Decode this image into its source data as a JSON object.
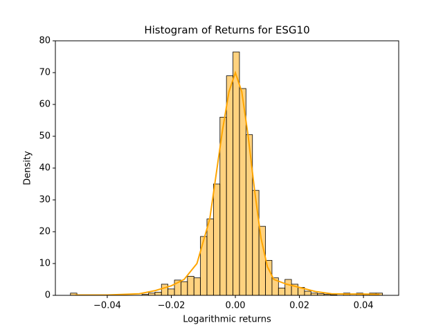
{
  "chart_data": {
    "type": "histogram",
    "title": "Histogram of Returns for ESG10",
    "x_label": "Logarithmic returns",
    "y_label": "Density",
    "bins": [
      -0.0515,
      -0.04947,
      -0.04744,
      -0.04541,
      -0.04338,
      -0.04135,
      -0.03932,
      -0.03729,
      -0.03526,
      -0.03323,
      -0.0312,
      -0.02917,
      -0.02714,
      -0.02511,
      -0.02308,
      -0.02105,
      -0.01902,
      -0.01699,
      -0.01496,
      -0.01293,
      -0.0109,
      -0.00887,
      -0.00684,
      -0.00481,
      -0.00278,
      -0.00075,
      0.00128,
      0.00331,
      0.00534,
      0.00737,
      0.0094,
      0.01143,
      0.01346,
      0.01549,
      0.01752,
      0.01955,
      0.02158,
      0.02361,
      0.02564,
      0.02767,
      0.0297,
      0.03173,
      0.03376,
      0.03579,
      0.03782,
      0.03985,
      0.04188,
      0.04391,
      0.04594
    ],
    "values": [
      0.7,
      0,
      0,
      0,
      0,
      0,
      0,
      0,
      0,
      0,
      0,
      0.3,
      0.7,
      1.0,
      3.5,
      2.0,
      4.8,
      4.3,
      6.0,
      5.5,
      18.5,
      24,
      35,
      56,
      69,
      76.5,
      65,
      50.5,
      33,
      21.7,
      11,
      5.5,
      2.3,
      5,
      3.5,
      2.5,
      1.3,
      0.7,
      0.5,
      0.3,
      0.2,
      0,
      0.7,
      0,
      0.7,
      0.3,
      0.7,
      0.7
    ],
    "color": "#ffa500",
    "kde": {
      "x": [
        -0.05,
        -0.04,
        -0.03,
        -0.025,
        -0.02,
        -0.016,
        -0.012,
        -0.008,
        -0.006,
        -0.004,
        -0.002,
        0,
        0.002,
        0.004,
        0.006,
        0.008,
        0.01,
        0.012,
        0.016,
        0.02,
        0.025,
        0.03,
        0.035,
        0.04,
        0.045
      ],
      "values": [
        0.1,
        0.1,
        0.5,
        1.5,
        3,
        5,
        10,
        24,
        38,
        52,
        64,
        70,
        64,
        50,
        33,
        18,
        9,
        5,
        3.5,
        2.5,
        1.2,
        0.5,
        0.4,
        0.4,
        0.3
      ],
      "color": "#ffa500"
    },
    "xlim": [
      -0.0562,
      0.051
    ],
    "xticks": [
      {
        "value": -0.04,
        "label": "−0.04"
      },
      {
        "value": -0.02,
        "label": "−0.02"
      },
      {
        "value": 0,
        "label": "0.00"
      },
      {
        "value": 0.02,
        "label": "0.02"
      },
      {
        "value": 0.04,
        "label": "0.04"
      }
    ],
    "ylim": [
      0,
      80
    ],
    "yticks": [
      0,
      10,
      20,
      30,
      40,
      50,
      60,
      70,
      80
    ],
    "grid": false
  }
}
